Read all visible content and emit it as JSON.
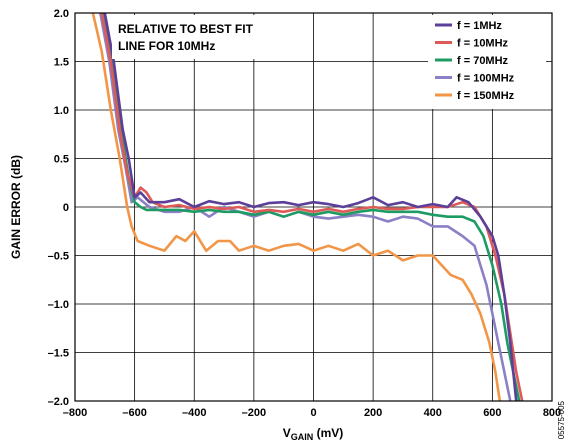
{
  "chart_data": {
    "type": "line",
    "xlabel_main": "V",
    "xlabel_sub": "GAIN",
    "xlabel_unit": " (mV)",
    "ylabel": "GAIN ERROR (dB)",
    "xlim": [
      -800,
      800
    ],
    "ylim": [
      -2.0,
      2.0
    ],
    "x_ticks": [
      "–800",
      "–600",
      "–400",
      "–200",
      "0",
      "200",
      "400",
      "600",
      "800"
    ],
    "x_tick_values": [
      -800,
      -600,
      -400,
      -200,
      0,
      200,
      400,
      600,
      800
    ],
    "y_ticks": [
      "2.0",
      "1.5",
      "1.0",
      "0.5",
      "0",
      "–0.5",
      "–1.0",
      "–1.5",
      "–2.0"
    ],
    "y_tick_values": [
      2.0,
      1.5,
      1.0,
      0.5,
      0,
      -0.5,
      -1.0,
      -1.5,
      -2.0
    ],
    "grid": true,
    "legend_position": "top-right",
    "annotation_lines": [
      "RELATIVE TO BEST FIT",
      "LINE FOR 10MHz"
    ],
    "figure_id": "05575-005",
    "series": [
      {
        "name": "f = 1MHz",
        "color": "#5b3f99",
        "x": [
          -700,
          -670,
          -640,
          -620,
          -600,
          -580,
          -550,
          -500,
          -450,
          -400,
          -350,
          -300,
          -250,
          -200,
          -150,
          -100,
          -50,
          0,
          50,
          100,
          150,
          200,
          250,
          300,
          350,
          400,
          450,
          480,
          520,
          560,
          600,
          620,
          640,
          660,
          680
        ],
        "y": [
          2.0,
          1.5,
          0.8,
          0.5,
          0.1,
          0.15,
          0.05,
          0.05,
          0.08,
          0.0,
          0.06,
          0.03,
          0.05,
          0.0,
          0.04,
          0.05,
          0.02,
          0.05,
          0.03,
          0.0,
          0.04,
          0.1,
          0.02,
          0.05,
          0.0,
          0.03,
          0.0,
          0.1,
          0.05,
          -0.1,
          -0.3,
          -0.5,
          -0.9,
          -1.4,
          -2.0
        ]
      },
      {
        "name": "f = 10MHz",
        "color": "#de5a57",
        "x": [
          -710,
          -680,
          -650,
          -625,
          -600,
          -580,
          -560,
          -540,
          -500,
          -450,
          -400,
          -350,
          -300,
          -250,
          -200,
          -150,
          -100,
          -50,
          0,
          50,
          100,
          150,
          200,
          250,
          300,
          350,
          400,
          450,
          500,
          540,
          580,
          610,
          640,
          660,
          680,
          700
        ],
        "y": [
          2.0,
          1.5,
          0.8,
          0.35,
          0.1,
          0.2,
          0.15,
          0.05,
          0.0,
          0.02,
          -0.02,
          0.0,
          -0.02,
          0.0,
          -0.05,
          -0.03,
          -0.05,
          -0.02,
          -0.05,
          -0.02,
          -0.05,
          -0.02,
          0.0,
          -0.02,
          -0.02,
          0.0,
          0.0,
          0.0,
          0.05,
          0.0,
          -0.2,
          -0.5,
          -0.9,
          -1.3,
          -1.7,
          -2.0
        ]
      },
      {
        "name": "f = 70MHz",
        "color": "#1e9b62",
        "x": [
          -705,
          -675,
          -645,
          -620,
          -600,
          -580,
          -560,
          -500,
          -450,
          -400,
          -350,
          -300,
          -250,
          -200,
          -150,
          -100,
          -50,
          0,
          50,
          100,
          150,
          200,
          250,
          300,
          350,
          400,
          450,
          500,
          540,
          570,
          600,
          630,
          650,
          670,
          690
        ],
        "y": [
          2.0,
          1.5,
          0.8,
          0.3,
          0.05,
          0.0,
          -0.03,
          -0.03,
          -0.03,
          -0.05,
          -0.03,
          -0.05,
          -0.05,
          -0.08,
          -0.05,
          -0.1,
          -0.05,
          -0.08,
          -0.05,
          -0.08,
          -0.05,
          -0.03,
          -0.05,
          -0.05,
          -0.05,
          -0.08,
          -0.1,
          -0.1,
          -0.15,
          -0.3,
          -0.6,
          -1.0,
          -1.4,
          -1.7,
          -2.0
        ]
      },
      {
        "name": "f = 100MHz",
        "color": "#8b7fc6",
        "x": [
          -715,
          -685,
          -655,
          -630,
          -610,
          -590,
          -570,
          -550,
          -500,
          -450,
          -400,
          -350,
          -300,
          -250,
          -200,
          -150,
          -100,
          -50,
          0,
          50,
          100,
          150,
          200,
          250,
          300,
          350,
          400,
          450,
          500,
          540,
          560,
          580,
          600,
          620,
          640,
          660
        ],
        "y": [
          2.0,
          1.5,
          0.8,
          0.4,
          0.05,
          0.1,
          0.05,
          0.0,
          -0.05,
          -0.05,
          0.0,
          -0.1,
          0.0,
          -0.05,
          -0.1,
          -0.05,
          -0.1,
          -0.05,
          -0.1,
          -0.12,
          -0.1,
          -0.08,
          -0.1,
          -0.15,
          -0.1,
          -0.12,
          -0.2,
          -0.2,
          -0.3,
          -0.4,
          -0.6,
          -0.8,
          -1.1,
          -1.4,
          -1.7,
          -2.0
        ]
      },
      {
        "name": "f = 150MHz",
        "color": "#f29547",
        "x": [
          -740,
          -710,
          -680,
          -650,
          -625,
          -610,
          -590,
          -550,
          -500,
          -460,
          -430,
          -400,
          -360,
          -320,
          -280,
          -250,
          -200,
          -150,
          -100,
          -50,
          0,
          50,
          100,
          150,
          200,
          250,
          300,
          350,
          400,
          430,
          460,
          500,
          530,
          560,
          590,
          610,
          625
        ],
        "y": [
          2.0,
          1.6,
          1.0,
          0.5,
          0.0,
          -0.2,
          -0.35,
          -0.4,
          -0.45,
          -0.3,
          -0.35,
          -0.25,
          -0.45,
          -0.35,
          -0.35,
          -0.45,
          -0.4,
          -0.45,
          -0.4,
          -0.38,
          -0.45,
          -0.4,
          -0.45,
          -0.38,
          -0.5,
          -0.45,
          -0.55,
          -0.5,
          -0.5,
          -0.6,
          -0.7,
          -0.75,
          -0.9,
          -1.1,
          -1.4,
          -1.7,
          -2.0
        ]
      }
    ]
  }
}
